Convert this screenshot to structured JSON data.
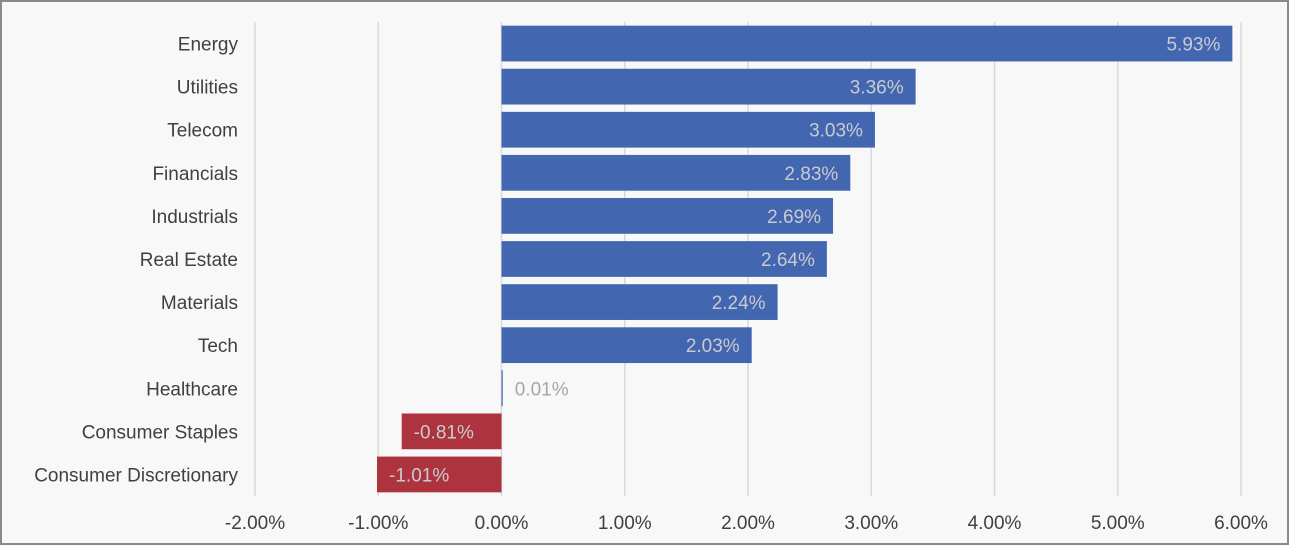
{
  "chart_data": {
    "type": "bar",
    "orientation": "horizontal",
    "title": "",
    "xlabel": "",
    "ylabel": "",
    "categories": [
      "Energy",
      "Utilities",
      "Telecom",
      "Financials",
      "Industrials",
      "Real Estate",
      "Materials",
      "Tech",
      "Healthcare",
      "Consumer Staples",
      "Consumer Discretionary"
    ],
    "values": [
      5.93,
      3.36,
      3.03,
      2.83,
      2.69,
      2.64,
      2.24,
      2.03,
      0.01,
      -0.81,
      -1.01
    ],
    "value_labels": [
      "5.93%",
      "3.36%",
      "3.03%",
      "2.83%",
      "2.69%",
      "2.64%",
      "2.24%",
      "2.03%",
      "0.01%",
      "-0.81%",
      "-1.01%"
    ],
    "xlim": [
      -2,
      6
    ],
    "x_ticks": [
      -2,
      -1,
      0,
      1,
      2,
      3,
      4,
      5,
      6
    ],
    "x_tick_labels": [
      "-2.00%",
      "-1.00%",
      "0.00%",
      "1.00%",
      "2.00%",
      "3.00%",
      "4.00%",
      "5.00%",
      "6.00%"
    ],
    "grid": "vertical",
    "legend": "none",
    "colors": {
      "positive": "#4366b0",
      "negative": "#ad343e",
      "label_on_bar": "#c9cbd1",
      "label_outside": "#a6a6a6",
      "gridline": "#d9d9d9",
      "background": "#f8f8f8"
    }
  }
}
